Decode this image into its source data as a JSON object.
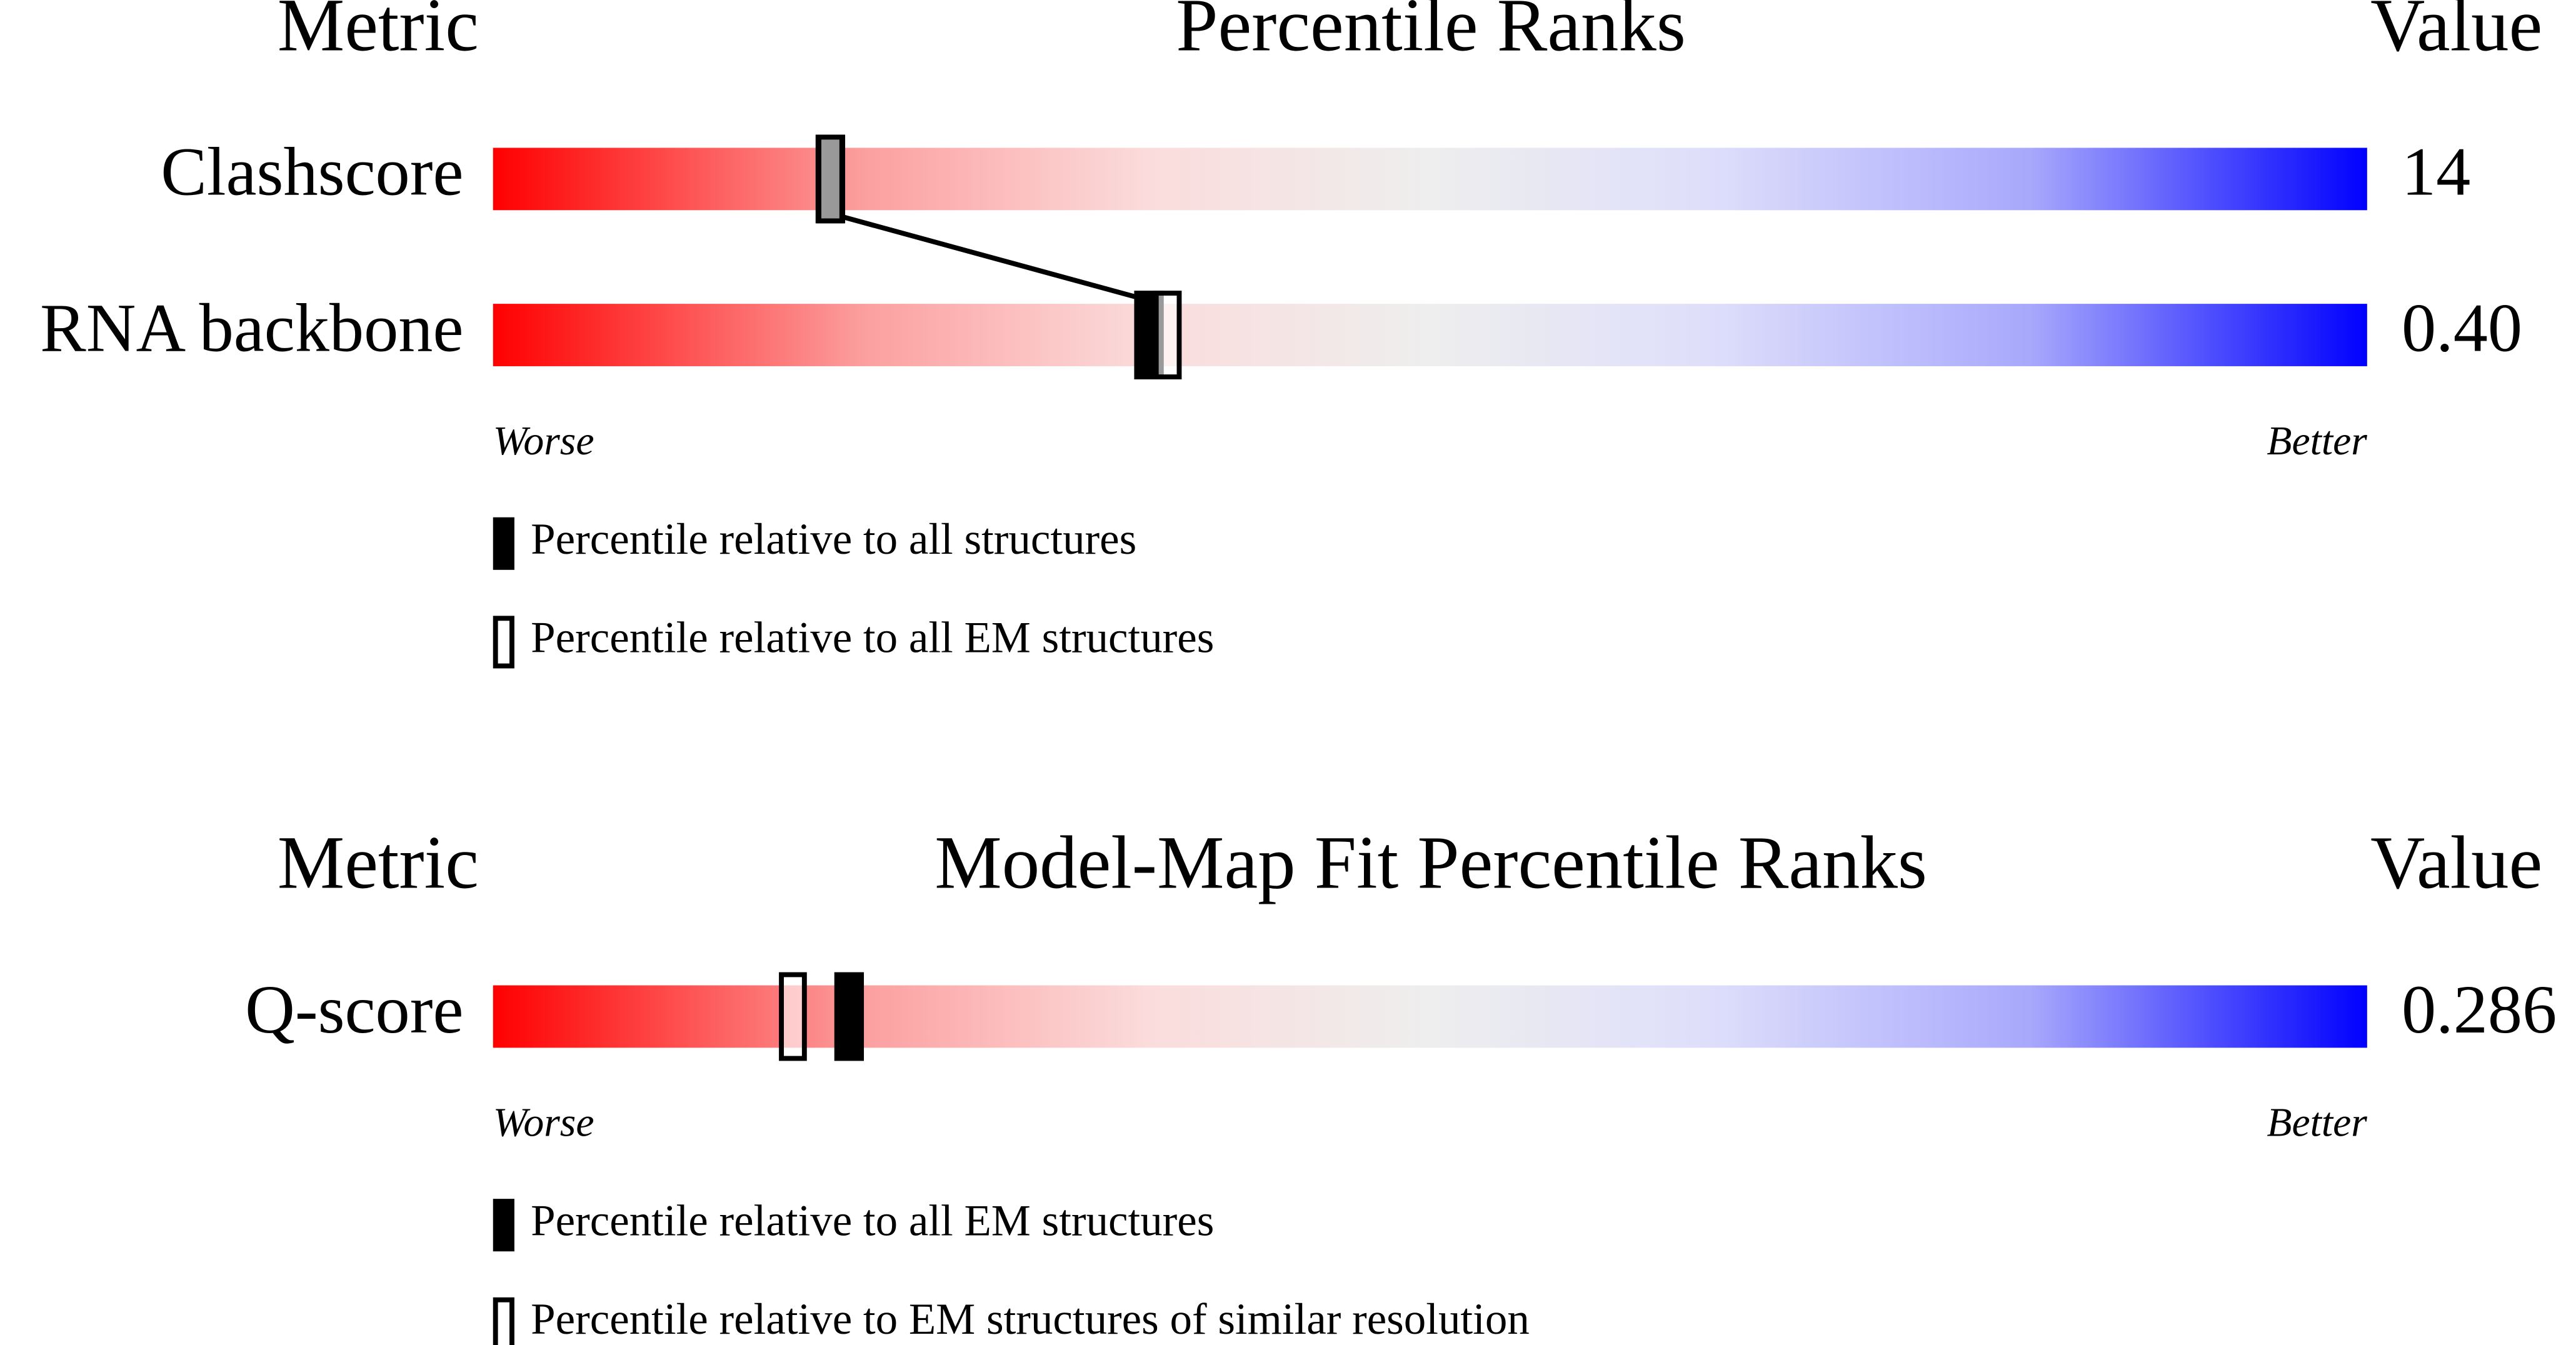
{
  "chart_data": [
    {
      "type": "percentile",
      "header_left": "Metric",
      "title": "Percentile Ranks",
      "header_right": "Value",
      "categories": [
        "Clashscore",
        "RNA backbone"
      ],
      "metric_values": [
        "14",
        "0.40"
      ],
      "xlim": [
        0,
        100
      ],
      "axis_left": "Worse",
      "axis_right": "Better",
      "connect": true,
      "series": [
        {
          "name": "Percentile relative to all structures",
          "style": "filled",
          "color": "#000000",
          "values": [
            18,
            35
          ]
        },
        {
          "name": "Percentile relative to all EM structures",
          "style": "open",
          "color": "#000000",
          "values": [
            18,
            36
          ]
        }
      ]
    },
    {
      "type": "percentile",
      "header_left": "Metric",
      "title": "Model-Map Fit Percentile Ranks",
      "header_right": "Value",
      "categories": [
        "Q-score"
      ],
      "metric_values": [
        "0.286"
      ],
      "xlim": [
        0,
        100
      ],
      "axis_left": "Worse",
      "axis_right": "Better",
      "connect": false,
      "series": [
        {
          "name": "Percentile relative to all EM structures",
          "style": "filled",
          "color": "#000000",
          "values": [
            19
          ]
        },
        {
          "name": "Percentile relative to EM structures of similar resolution",
          "style": "open",
          "color": "#000000",
          "values": [
            16
          ]
        }
      ]
    }
  ]
}
